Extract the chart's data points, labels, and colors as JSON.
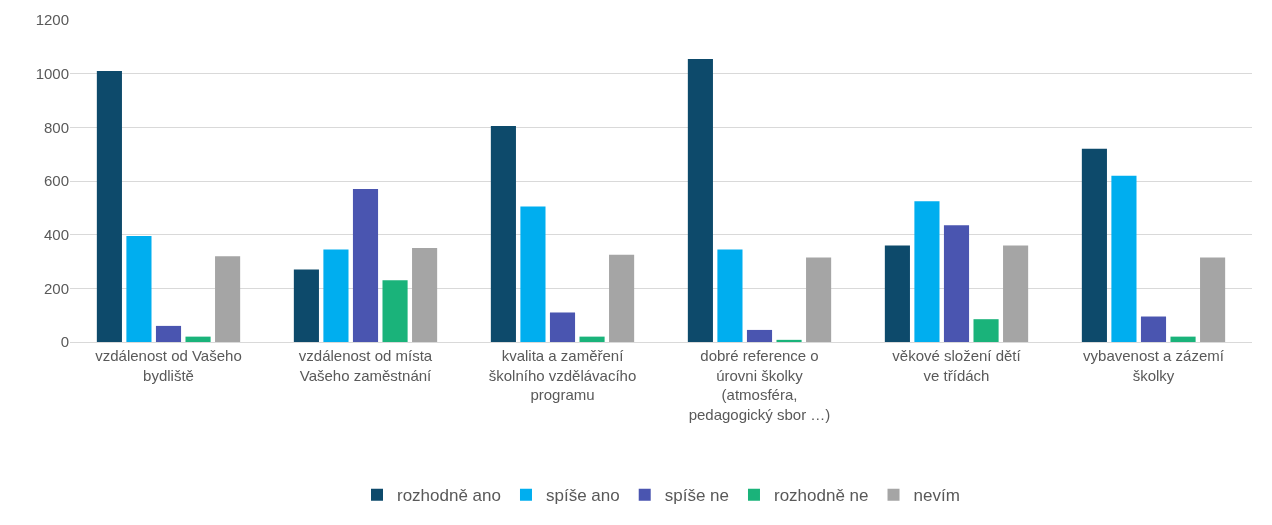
{
  "chart_data": {
    "type": "bar",
    "categories": [
      "vzdálenost od Vašeho bydliště",
      "vzdálenost od místa Vašeho zaměstnání",
      "kvalita a zaměření školního vzdělávacího programu",
      "dobré reference o úrovni školky (atmosféra, pedagogický sbor …)",
      "věkové složení dětí ve třídách",
      "vybavenost a zázemí školky"
    ],
    "series": [
      {
        "name": "rozhodně ano",
        "color": "#0d4a6b",
        "values": [
          1010,
          270,
          805,
          1055,
          360,
          720
        ]
      },
      {
        "name": "spíše ano",
        "color": "#00aeef",
        "values": [
          395,
          345,
          505,
          345,
          525,
          620
        ]
      },
      {
        "name": "spíše ne",
        "color": "#4a55b0",
        "values": [
          60,
          570,
          110,
          45,
          435,
          95
        ]
      },
      {
        "name": "rozhodně ne",
        "color": "#1ab37a",
        "values": [
          20,
          230,
          20,
          8,
          85,
          20
        ]
      },
      {
        "name": "nevím",
        "color": "#a5a5a5",
        "values": [
          320,
          350,
          325,
          315,
          360,
          315
        ]
      }
    ],
    "ylim": [
      0,
      1200
    ],
    "yticks": [
      0,
      200,
      400,
      600,
      800,
      1000,
      1200
    ],
    "grid": "y",
    "legend": "bottom"
  }
}
